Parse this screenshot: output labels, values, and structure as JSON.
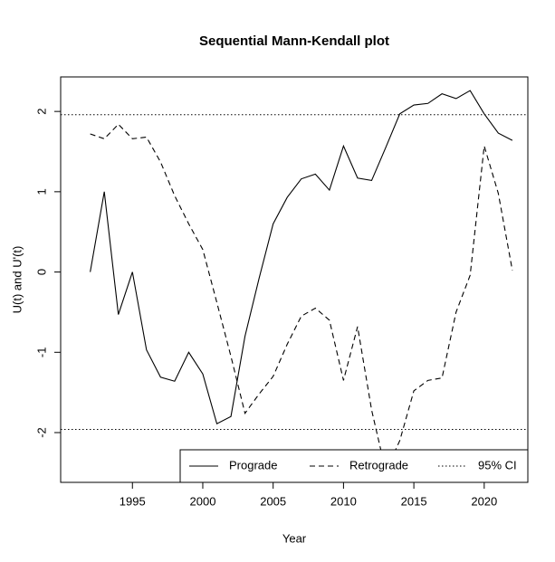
{
  "chart_data": {
    "type": "line",
    "title": "Sequential Mann-Kendall plot",
    "x_label": "Year",
    "y_label": "U(t) and U'(t)",
    "x": [
      1992,
      1993,
      1994,
      1995,
      1996,
      1997,
      1998,
      1999,
      2000,
      2001,
      2002,
      2003,
      2004,
      2005,
      2006,
      2007,
      2008,
      2009,
      2010,
      2011,
      2012,
      2013,
      2014,
      2015,
      2016,
      2017,
      2018,
      2019,
      2020,
      2021,
      2022
    ],
    "series": [
      {
        "name": "Prograde",
        "color": "#000000",
        "style": "solid",
        "values": [
          0,
          1.0,
          -0.53,
          0,
          -0.97,
          -1.31,
          -1.36,
          -1.0,
          -1.27,
          -1.89,
          -1.8,
          -0.8,
          -0.08,
          0.6,
          0.93,
          1.16,
          1.22,
          1.02,
          1.57,
          1.17,
          1.14,
          1.55,
          1.97,
          2.08,
          2.1,
          2.22,
          2.16,
          2.26,
          1.97,
          1.73,
          1.64
        ]
      },
      {
        "name": "Retrograde",
        "color": "#000000",
        "style": "dashed",
        "values": [
          1.72,
          1.66,
          1.84,
          1.66,
          1.68,
          1.37,
          0.95,
          0.6,
          0.28,
          -0.38,
          -1.05,
          -1.76,
          -1.52,
          -1.3,
          -0.9,
          -0.55,
          -0.45,
          -0.6,
          -1.35,
          -0.68,
          -1.72,
          -2.48,
          -2.1,
          -1.48,
          -1.35,
          -1.32,
          -0.5,
          -0.04,
          1.57,
          0.98,
          0.02
        ]
      }
    ],
    "reference_line": {
      "name": "95% CI",
      "style": "dotted",
      "values": [
        1.96,
        -1.96
      ]
    },
    "xlim": [
      1989.9,
      2023.1
    ],
    "xticks": [
      1995,
      2000,
      2005,
      2010,
      2015,
      2020
    ],
    "ylim": [
      -2.62,
      2.43
    ],
    "yticks": [
      -2,
      -1,
      0,
      1,
      2
    ],
    "legend_position": "bottom-right"
  }
}
